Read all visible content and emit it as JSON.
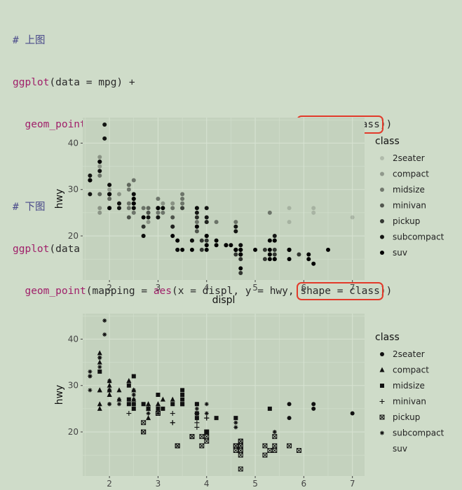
{
  "code": {
    "comment1": "# 上图",
    "line1": "ggplot(data = mpg) +",
    "line2_prefix": "  geom_point(mapping = aes(x = displ, y = hwy, ",
    "line2_highlight": "alpha = class",
    "line2_suffix": "))",
    "comment2": "# 下图",
    "line3": "ggplot(data = mpg) +",
    "line4_prefix": "  geom_point(mapping = aes(x = displ, y = hwy, ",
    "line4_highlight": "shape = class",
    "line4_suffix": "))",
    "fn_ggplot": "ggplot",
    "fn_geom_point": "geom_point",
    "fn_aes": "aes"
  },
  "colors": {
    "background": "#cfdcc9",
    "panel": "#c4d2be",
    "grid": "#d6e2d1",
    "highlight": "#e23a2a"
  },
  "chart_data": [
    {
      "type": "scatter",
      "xlabel": "displ",
      "ylabel": "hwy",
      "xticks": [
        2,
        3,
        4,
        5,
        6,
        7
      ],
      "yticks": [
        20,
        30,
        40
      ],
      "xlim": [
        1.45,
        7.25
      ],
      "ylim": [
        10.5,
        45.5
      ],
      "legend_title": "class",
      "legend_position": "right",
      "aesthetic": "alpha",
      "classes": [
        "2seater",
        "compact",
        "midsize",
        "minivan",
        "pickup",
        "subcompact",
        "suv"
      ],
      "series": [
        {
          "name": "2seater",
          "points": [
            [
              5.7,
              26
            ],
            [
              5.7,
              23
            ],
            [
              6.2,
              26
            ],
            [
              6.2,
              25
            ],
            [
              7.0,
              24
            ]
          ]
        },
        {
          "name": "compact",
          "points": [
            [
              1.8,
              29
            ],
            [
              1.8,
              29
            ],
            [
              2.0,
              31
            ],
            [
              2.0,
              30
            ],
            [
              2.8,
              26
            ],
            [
              2.8,
              26
            ],
            [
              3.1,
              27
            ],
            [
              1.8,
              26
            ],
            [
              1.8,
              25
            ],
            [
              2.0,
              28
            ],
            [
              2.2,
              27
            ],
            [
              2.2,
              29
            ],
            [
              2.4,
              31
            ],
            [
              2.4,
              31
            ],
            [
              3.0,
              26
            ],
            [
              3.0,
              26
            ],
            [
              3.3,
              27
            ],
            [
              1.8,
              37
            ],
            [
              1.8,
              35
            ],
            [
              2.0,
              29
            ],
            [
              2.0,
              29
            ],
            [
              2.5,
              27
            ],
            [
              2.5,
              29
            ],
            [
              2.8,
              25
            ],
            [
              2.8,
              23
            ],
            [
              2.0,
              28
            ]
          ]
        },
        {
          "name": "midsize",
          "points": [
            [
              2.8,
              25
            ],
            [
              3.1,
              25
            ],
            [
              4.2,
              23
            ],
            [
              2.4,
              27
            ],
            [
              2.4,
              30
            ],
            [
              2.5,
              26
            ],
            [
              3.3,
              26
            ],
            [
              3.5,
              29
            ],
            [
              3.5,
              26
            ],
            [
              3.5,
              28
            ],
            [
              3.8,
              26
            ],
            [
              3.8,
              24
            ],
            [
              2.5,
              32
            ],
            [
              2.5,
              25
            ],
            [
              3.5,
              27
            ],
            [
              3.0,
              25
            ],
            [
              3.0,
              28
            ],
            [
              3.5,
              26
            ],
            [
              3.8,
              23
            ],
            [
              4.0,
              20
            ],
            [
              4.6,
              23
            ],
            [
              5.3,
              25
            ],
            [
              1.8,
              33
            ],
            [
              2.4,
              26
            ],
            [
              2.7,
              26
            ]
          ]
        },
        {
          "name": "minivan",
          "points": [
            [
              2.4,
              24
            ],
            [
              3.0,
              24
            ],
            [
              3.3,
              22
            ],
            [
              3.3,
              22
            ],
            [
              3.3,
              24
            ],
            [
              3.8,
              24
            ],
            [
              3.8,
              22
            ],
            [
              3.8,
              21
            ],
            [
              4.0,
              23
            ],
            [
              4.0,
              23
            ]
          ]
        },
        {
          "name": "pickup",
          "points": [
            [
              2.7,
              20
            ],
            [
              2.7,
              20
            ],
            [
              2.7,
              22
            ],
            [
              3.0,
              24
            ],
            [
              3.7,
              19
            ],
            [
              3.7,
              19
            ],
            [
              3.9,
              17
            ],
            [
              3.9,
              19
            ],
            [
              4.7,
              17
            ],
            [
              4.7,
              17
            ],
            [
              4.7,
              16
            ],
            [
              4.7,
              18
            ],
            [
              5.2,
              17
            ],
            [
              5.2,
              15
            ],
            [
              5.7,
              17
            ],
            [
              5.9,
              16
            ],
            [
              4.7,
              12
            ],
            [
              4.7,
              16
            ],
            [
              4.7,
              15
            ],
            [
              4.6,
              17
            ],
            [
              5.4,
              16
            ],
            [
              5.4,
              17
            ],
            [
              5.4,
              19
            ],
            [
              4.0,
              18
            ],
            [
              4.0,
              20
            ],
            [
              4.6,
              17
            ],
            [
              4.6,
              16
            ],
            [
              5.3,
              16
            ],
            [
              3.4,
              17
            ],
            [
              3.4,
              17
            ],
            [
              4.0,
              19
            ],
            [
              4.7,
              18
            ]
          ]
        },
        {
          "name": "subcompact",
          "points": [
            [
              3.8,
              26
            ],
            [
              3.8,
              25
            ],
            [
              4.0,
              26
            ],
            [
              4.0,
              24
            ],
            [
              4.6,
              21
            ],
            [
              4.6,
              22
            ],
            [
              5.4,
              20
            ],
            [
              1.6,
              33
            ],
            [
              1.6,
              32
            ],
            [
              1.6,
              32
            ],
            [
              1.6,
              29
            ],
            [
              1.6,
              32
            ],
            [
              1.8,
              34
            ],
            [
              1.8,
              36
            ],
            [
              1.8,
              36
            ],
            [
              2.0,
              29
            ],
            [
              2.0,
              26
            ],
            [
              1.9,
              44
            ],
            [
              1.9,
              41
            ],
            [
              2.0,
              29
            ],
            [
              2.0,
              26
            ],
            [
              2.5,
              28
            ],
            [
              2.5,
              29
            ],
            [
              2.2,
              26
            ],
            [
              2.2,
              27
            ],
            [
              2.5,
              28
            ],
            [
              2.5,
              26
            ],
            [
              2.8,
              24
            ],
            [
              2.0,
              29
            ],
            [
              2.5,
              27
            ],
            [
              2.0,
              31
            ]
          ]
        },
        {
          "name": "suv",
          "points": [
            [
              5.7,
              17
            ],
            [
              6.1,
              15
            ],
            [
              5.3,
              19
            ],
            [
              5.3,
              17
            ],
            [
              5.3,
              15
            ],
            [
              5.7,
              17
            ],
            [
              6.5,
              17
            ],
            [
              4.2,
              18
            ],
            [
              5.3,
              16
            ],
            [
              4.6,
              17
            ],
            [
              5.4,
              15
            ],
            [
              5.4,
              15
            ],
            [
              3.7,
              17
            ],
            [
              4.7,
              17
            ],
            [
              5.7,
              17
            ],
            [
              5.0,
              17
            ],
            [
              6.1,
              16
            ],
            [
              6.2,
              14
            ],
            [
              4.0,
              18
            ],
            [
              4.6,
              17
            ],
            [
              5.4,
              19
            ],
            [
              4.4,
              18
            ],
            [
              3.0,
              26
            ],
            [
              3.1,
              26
            ],
            [
              3.4,
              19
            ],
            [
              3.5,
              17
            ],
            [
              4.0,
              17
            ],
            [
              4.0,
              20
            ],
            [
              4.4,
              18
            ],
            [
              4.6,
              17
            ],
            [
              4.7,
              16
            ],
            [
              5.7,
              15
            ],
            [
              3.3,
              20
            ],
            [
              3.8,
              22
            ],
            [
              4.7,
              16
            ],
            [
              4.2,
              19
            ],
            [
              2.5,
              27
            ],
            [
              2.7,
              24
            ],
            [
              3.0,
              26
            ],
            [
              4.7,
              13
            ],
            [
              4.5,
              18
            ]
          ]
        }
      ]
    },
    {
      "type": "scatter",
      "xlabel": "displ",
      "ylabel": "hwy",
      "xticks": [
        2,
        3,
        4,
        5,
        6,
        7
      ],
      "yticks": [
        20,
        30,
        40
      ],
      "xlim": [
        1.45,
        7.25
      ],
      "ylim": [
        10.5,
        45.5
      ],
      "legend_title": "class",
      "legend_position": "right",
      "aesthetic": "shape",
      "classes": [
        "2seater",
        "compact",
        "midsize",
        "minivan",
        "pickup",
        "subcompact",
        "suv"
      ],
      "shapes": [
        "circle",
        "triangle",
        "square",
        "plus",
        "boxx",
        "asterisk",
        "none"
      ],
      "series_ref": "same points as chart_data[0].series"
    }
  ]
}
